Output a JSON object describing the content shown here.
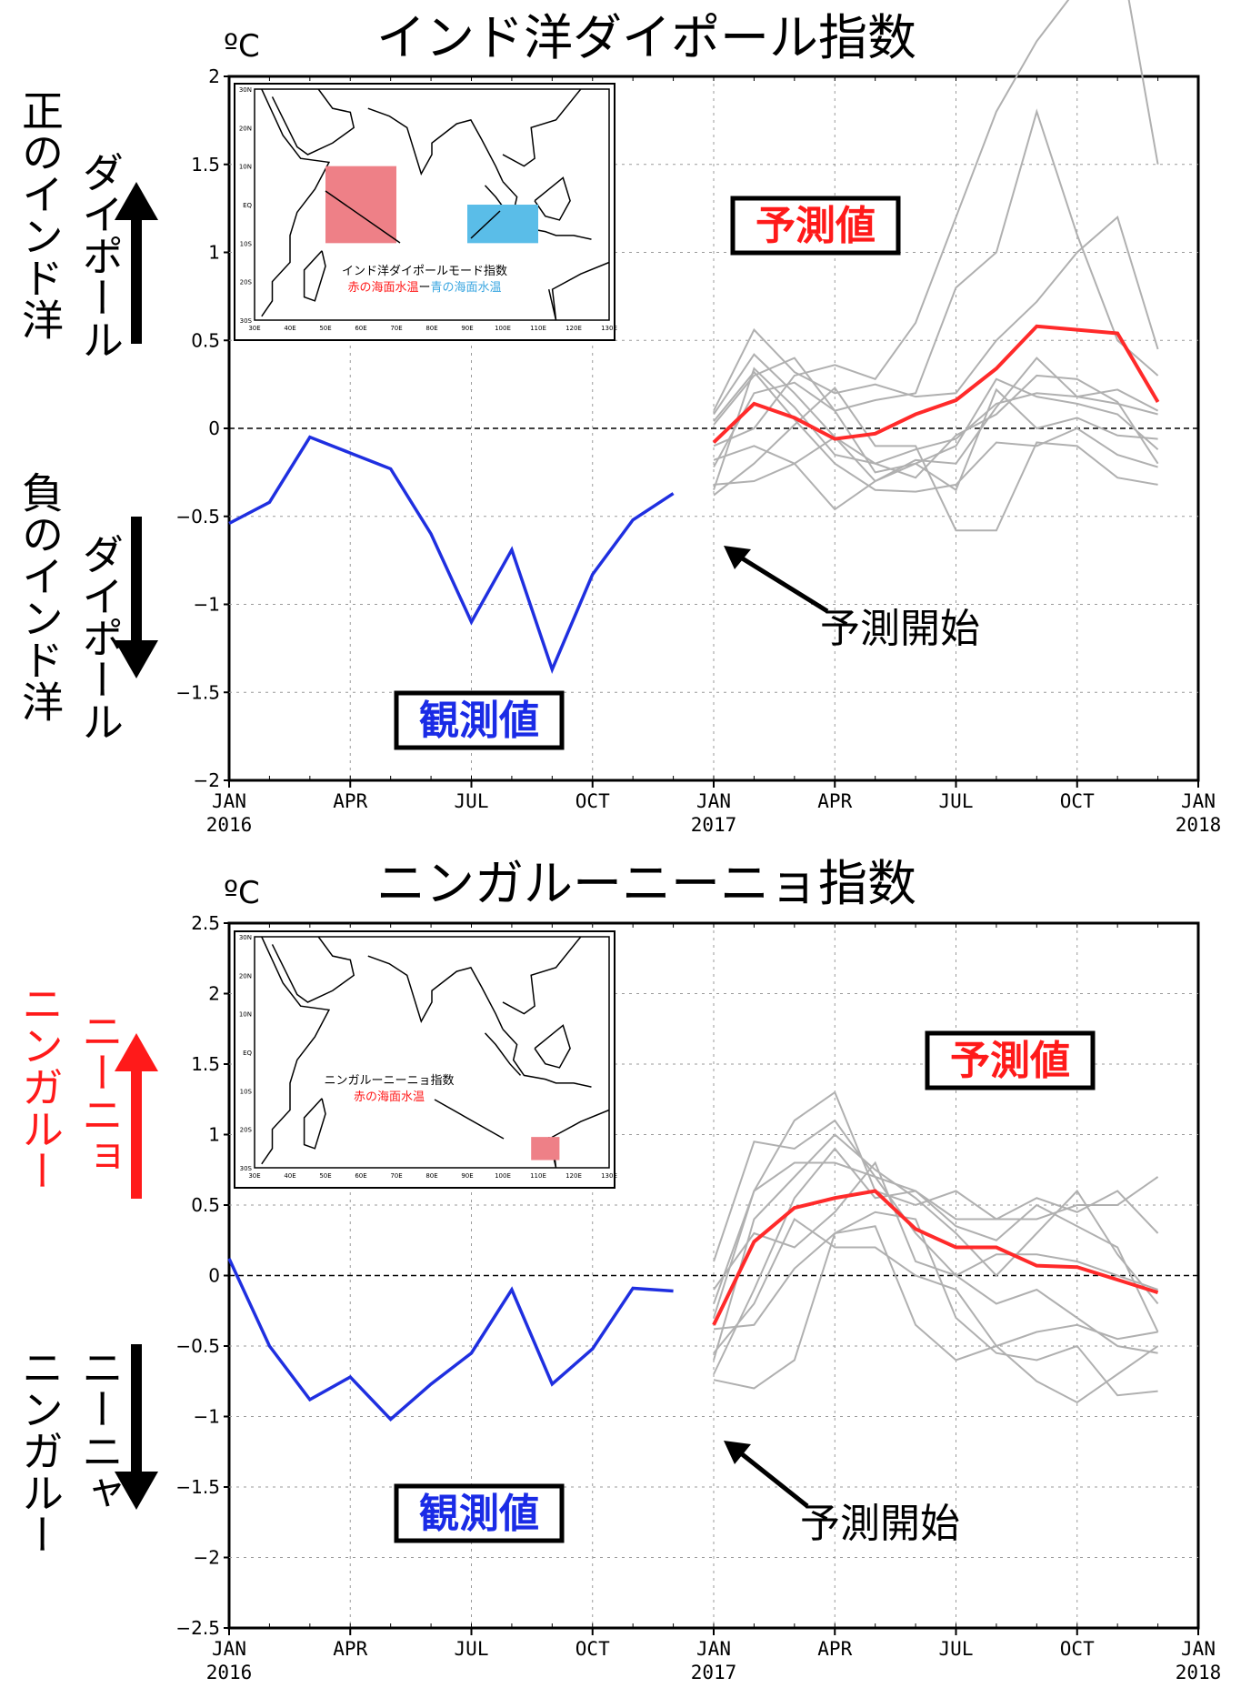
{
  "chart_data": [
    {
      "type": "line",
      "title": "インド洋ダイポール指数",
      "unit": "ºC",
      "ylim": [
        -2,
        2
      ],
      "yticks": [
        "2",
        "1.5",
        "1",
        "0.5",
        "0",
        "−0.5",
        "−1",
        "−1.5",
        "−2"
      ],
      "xticks": [
        {
          "label": "JAN",
          "sub": "2016"
        },
        {
          "label": "APR",
          "sub": ""
        },
        {
          "label": "JUL",
          "sub": ""
        },
        {
          "label": "OCT",
          "sub": ""
        },
        {
          "label": "JAN",
          "sub": "2017"
        },
        {
          "label": "APR",
          "sub": ""
        },
        {
          "label": "JUL",
          "sub": ""
        },
        {
          "label": "OCT",
          "sub": ""
        },
        {
          "label": "JAN",
          "sub": "2018"
        }
      ],
      "grid": true,
      "observed": {
        "color": "#1f2fe0",
        "x": [
          "2016-01",
          "2016-02",
          "2016-03",
          "2016-04",
          "2016-05",
          "2016-06",
          "2016-07",
          "2016-08",
          "2016-09",
          "2016-10",
          "2016-11",
          "2016-12"
        ],
        "y": [
          -0.54,
          -0.42,
          -0.05,
          -0.14,
          -0.23,
          -0.6,
          -1.1,
          -0.69,
          -1.37,
          -0.83,
          -0.52,
          -0.37
        ]
      },
      "forecast_mean": {
        "color": "#ff2a2a",
        "x": [
          "2017-01",
          "2017-02",
          "2017-03",
          "2017-04",
          "2017-05",
          "2017-06",
          "2017-07",
          "2017-08",
          "2017-09",
          "2017-10",
          "2017-11",
          "2017-12"
        ],
        "y": [
          -0.08,
          0.14,
          0.06,
          -0.06,
          -0.03,
          0.08,
          0.16,
          0.34,
          0.58,
          0.56,
          0.54,
          0.15
        ]
      },
      "forecast_members": [
        [
          0.08,
          0.42,
          0.2,
          -0.05,
          -0.2,
          -0.28,
          -0.04,
          0.08,
          0.3,
          0.28,
          0.15,
          -0.2
        ],
        [
          0.1,
          0.56,
          0.32,
          0.2,
          0.25,
          0.18,
          0.2,
          0.5,
          0.72,
          1.0,
          1.2,
          0.45
        ],
        [
          -0.22,
          0.2,
          0.26,
          0.1,
          0.16,
          0.2,
          0.8,
          1.0,
          1.8,
          1.1,
          0.5,
          0.3
        ],
        [
          -0.1,
          0.0,
          0.3,
          0.36,
          0.28,
          0.6,
          1.2,
          1.8,
          2.2,
          2.5,
          2.8,
          1.5
        ],
        [
          -0.35,
          0.34,
          0.12,
          -0.15,
          -0.2,
          -0.12,
          -0.06,
          0.14,
          0.2,
          0.18,
          0.14,
          0.08
        ],
        [
          -0.38,
          -0.2,
          0.02,
          0.23,
          -0.1,
          -0.1,
          -0.58,
          -0.58,
          -0.08,
          -0.1,
          -0.28,
          -0.32
        ],
        [
          0.02,
          0.3,
          0.4,
          0.1,
          -0.25,
          -0.2,
          -0.1,
          0.28,
          0.18,
          0.14,
          0.08,
          -0.12
        ],
        [
          -0.18,
          -0.1,
          -0.2,
          -0.05,
          -0.3,
          -0.2,
          -0.35,
          0.22,
          0.0,
          0.06,
          -0.04,
          -0.06
        ],
        [
          0.04,
          0.32,
          0.05,
          -0.2,
          -0.35,
          -0.36,
          -0.32,
          -0.08,
          -0.1,
          0.0,
          -0.15,
          -0.22
        ],
        [
          -0.32,
          -0.3,
          -0.2,
          -0.46,
          -0.3,
          -0.18,
          -0.2,
          0.12,
          0.4,
          0.18,
          0.22,
          0.1
        ]
      ],
      "side_labels": {
        "positive": [
          "正のインド洋",
          "ダイポール"
        ],
        "negative": [
          "負のインド洋",
          "ダイポール"
        ],
        "positive_color": "#000000",
        "negative_color": "#000000"
      },
      "labels": {
        "forecast": "予測値",
        "observed": "観測値",
        "start": "予測開始"
      },
      "inset": {
        "legend_title": "インド洋ダイポールモード指数",
        "red": "赤の海面水温",
        "dash": "ー",
        "blue": "青の海面水温",
        "lat_ticks": [
          "30N",
          "20N",
          "10N",
          "EQ",
          "10S",
          "20S",
          "30S"
        ],
        "lon_ticks": [
          "30E",
          "40E",
          "50E",
          "60E",
          "70E",
          "80E",
          "90E",
          "100E",
          "110E",
          "120E",
          "130E"
        ]
      }
    },
    {
      "type": "line",
      "title": "ニンガルーニーニョ指数",
      "unit": "ºC",
      "ylim": [
        -2.5,
        2.5
      ],
      "yticks": [
        "2.5",
        "2",
        "1.5",
        "1",
        "0.5",
        "0",
        "−0.5",
        "−1",
        "−1.5",
        "−2",
        "−2.5"
      ],
      "xticks": [
        {
          "label": "JAN",
          "sub": "2016"
        },
        {
          "label": "APR",
          "sub": ""
        },
        {
          "label": "JUL",
          "sub": ""
        },
        {
          "label": "OCT",
          "sub": ""
        },
        {
          "label": "JAN",
          "sub": "2017"
        },
        {
          "label": "APR",
          "sub": ""
        },
        {
          "label": "JUL",
          "sub": ""
        },
        {
          "label": "OCT",
          "sub": ""
        },
        {
          "label": "JAN",
          "sub": "2018"
        }
      ],
      "grid": true,
      "observed": {
        "color": "#1f2fe0",
        "x": [
          "2016-01",
          "2016-02",
          "2016-03",
          "2016-04",
          "2016-05",
          "2016-06",
          "2016-07",
          "2016-08",
          "2016-09",
          "2016-10",
          "2016-11",
          "2016-12"
        ],
        "y": [
          0.12,
          -0.5,
          -0.88,
          -0.72,
          -1.02,
          -0.77,
          -0.55,
          -0.1,
          -0.77,
          -0.52,
          -0.09,
          -0.11
        ]
      },
      "forecast_mean": {
        "color": "#ff2a2a",
        "x": [
          "2017-01",
          "2017-02",
          "2017-03",
          "2017-04",
          "2017-05",
          "2017-06",
          "2017-07",
          "2017-08",
          "2017-09",
          "2017-10",
          "2017-11",
          "2017-12"
        ],
        "y": [
          -0.35,
          0.24,
          0.48,
          0.55,
          0.6,
          0.33,
          0.2,
          0.2,
          0.07,
          0.06,
          -0.03,
          -0.12
        ]
      },
      "forecast_members": [
        [
          0.1,
          0.95,
          0.9,
          1.1,
          0.7,
          0.6,
          0.35,
          0.25,
          0.5,
          0.35,
          0.2,
          -0.4
        ],
        [
          -0.3,
          0.6,
          1.1,
          1.3,
          0.6,
          0.5,
          0.6,
          0.4,
          0.55,
          0.45,
          0.6,
          0.3
        ],
        [
          -0.2,
          0.6,
          0.8,
          0.8,
          0.7,
          0.3,
          0.0,
          -0.2,
          -0.1,
          -0.3,
          -0.5,
          -0.55
        ],
        [
          -0.6,
          0.4,
          0.7,
          1.0,
          0.75,
          0.55,
          0.3,
          0.0,
          0.3,
          0.6,
          0.15,
          -0.2
        ],
        [
          -0.7,
          -0.1,
          0.55,
          0.9,
          0.55,
          0.6,
          0.4,
          0.4,
          0.4,
          0.5,
          0.5,
          0.7
        ],
        [
          -0.74,
          -0.8,
          -0.6,
          0.3,
          0.45,
          0.4,
          -0.3,
          -0.55,
          -0.6,
          -0.5,
          -0.85,
          -0.82
        ],
        [
          -0.55,
          -0.2,
          0.4,
          0.2,
          0.2,
          0.0,
          -0.1,
          -0.5,
          -0.75,
          -0.9,
          -0.7,
          -0.5
        ],
        [
          -0.38,
          -0.35,
          0.05,
          0.3,
          0.35,
          -0.35,
          -0.6,
          -0.5,
          -0.4,
          -0.35,
          -0.45,
          -0.4
        ],
        [
          -0.1,
          0.3,
          0.2,
          0.45,
          0.8,
          0.1,
          0.0,
          0.15,
          0.15,
          0.1,
          0.0,
          -0.1
        ]
      ],
      "side_labels": {
        "positive": [
          "ニンガルー",
          "ニーニョ"
        ],
        "negative": [
          "ニンガルー",
          "ニーニャ"
        ],
        "positive_color": "#ff1a1a",
        "negative_color": "#000000"
      },
      "labels": {
        "forecast": "予測値",
        "observed": "観測値",
        "start": "予測開始"
      },
      "inset": {
        "legend_title": "ニンガルーニーニョ指数",
        "red": "赤の海面水温",
        "lat_ticks": [
          "30N",
          "20N",
          "10N",
          "EQ",
          "10S",
          "20S",
          "30S"
        ],
        "lon_ticks": [
          "30E",
          "40E",
          "50E",
          "60E",
          "70E",
          "80E",
          "90E",
          "100E",
          "110E",
          "120E",
          "130E"
        ]
      }
    }
  ]
}
